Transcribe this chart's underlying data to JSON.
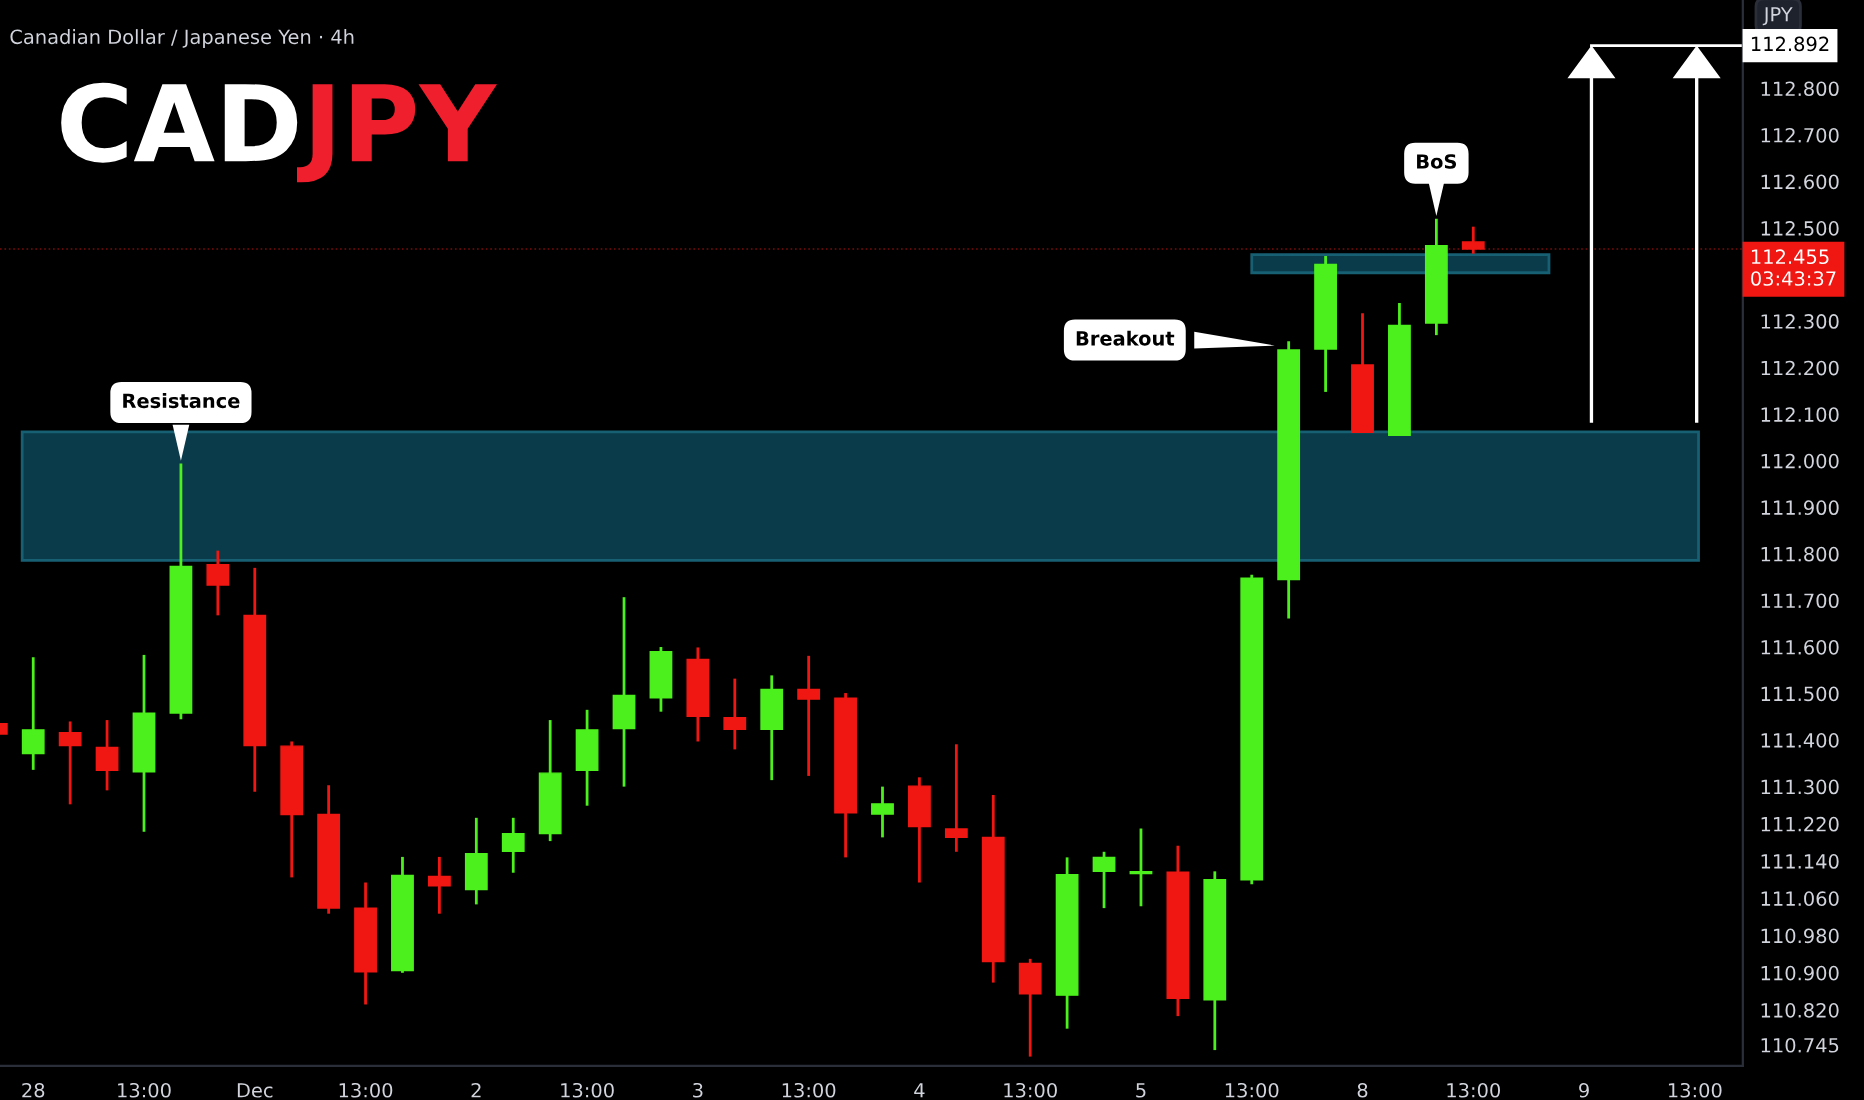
{
  "chart_data": {
    "type": "candlestick",
    "title": "Canadian Dollar / Japanese Yen · 4h",
    "subtitle": "CADJPY",
    "ylabel": "JPY",
    "categories": [
      null,
      "28",
      null,
      null,
      "13:00",
      null,
      null,
      "Dec",
      null,
      null,
      "13:00",
      null,
      null,
      "2",
      null,
      null,
      "13:00",
      null,
      null,
      "3",
      null,
      null,
      "13:00",
      null,
      null,
      "4",
      null,
      null,
      "13:00",
      null,
      null,
      "5",
      null,
      null,
      "13:00",
      null,
      null,
      "8",
      null,
      null,
      "13:00",
      null,
      null,
      "9",
      null,
      null,
      "13:00",
      null
    ],
    "ohlc": [
      [
        111.435,
        111.44,
        111.41,
        111.413
      ],
      [
        111.371,
        111.578,
        111.336,
        111.422
      ],
      [
        111.416,
        111.44,
        111.262,
        111.388
      ],
      [
        111.384,
        111.443,
        111.292,
        111.335
      ],
      [
        111.332,
        111.583,
        111.203,
        111.458
      ],
      [
        111.458,
        111.994,
        111.445,
        111.773
      ],
      [
        111.777,
        111.807,
        111.668,
        111.733
      ],
      [
        111.668,
        111.77,
        111.289,
        111.388
      ],
      [
        111.387,
        111.397,
        111.105,
        111.24
      ],
      [
        111.24,
        111.303,
        111.027,
        111.039
      ],
      [
        111.039,
        111.094,
        110.832,
        110.902
      ],
      [
        110.905,
        111.149,
        110.9,
        111.109
      ],
      [
        111.107,
        111.149,
        111.027,
        111.087
      ],
      [
        111.079,
        111.233,
        111.047,
        111.156
      ],
      [
        111.161,
        111.233,
        111.115,
        111.199
      ],
      [
        111.199,
        111.443,
        111.183,
        111.329
      ],
      [
        111.335,
        111.465,
        111.259,
        111.422
      ],
      [
        111.425,
        111.707,
        111.3,
        111.496
      ],
      [
        111.491,
        111.6,
        111.461,
        111.59
      ],
      [
        111.573,
        111.599,
        111.397,
        111.451
      ],
      [
        111.448,
        111.532,
        111.38,
        111.423
      ],
      [
        111.423,
        111.539,
        111.314,
        111.509
      ],
      [
        111.509,
        111.581,
        111.323,
        111.488
      ],
      [
        111.49,
        111.501,
        111.148,
        111.244
      ],
      [
        111.241,
        111.3,
        111.191,
        111.263
      ],
      [
        111.301,
        111.32,
        111.094,
        111.214
      ],
      [
        111.209,
        111.391,
        111.16,
        111.191
      ],
      [
        111.191,
        111.282,
        110.879,
        110.924
      ],
      [
        110.92,
        110.93,
        110.72,
        110.855
      ],
      [
        110.852,
        111.148,
        110.78,
        111.111
      ],
      [
        111.118,
        111.16,
        111.039,
        111.148
      ],
      [
        111.113,
        111.21,
        111.043,
        111.116
      ],
      [
        111.116,
        111.173,
        110.807,
        110.845
      ],
      [
        110.842,
        111.118,
        110.734,
        111.1
      ],
      [
        111.1,
        111.755,
        111.09,
        111.748
      ],
      [
        111.745,
        112.257,
        111.661,
        112.238
      ],
      [
        112.24,
        112.44,
        112.148,
        112.422
      ],
      [
        112.206,
        112.317,
        112.061,
        112.061
      ],
      [
        112.055,
        112.339,
        112.055,
        112.291
      ],
      [
        112.296,
        112.52,
        112.27,
        112.462
      ],
      [
        112.47,
        112.503,
        112.445,
        112.455
      ],
      null,
      null,
      null,
      null,
      null,
      null,
      null
    ],
    "colors": [
      "#f01712",
      "#4cf01c",
      "#f01712",
      "#f01712",
      "#4cf01c",
      "#4cf01c",
      "#f01712",
      "#f01712",
      "#f01712",
      "#f01712",
      "#f01712",
      "#4cf01c",
      "#f01712",
      "#4cf01c",
      "#4cf01c",
      "#4cf01c",
      "#4cf01c",
      "#4cf01c",
      "#4cf01c",
      "#f01712",
      "#f01712",
      "#4cf01c",
      "#f01712",
      "#f01712",
      "#4cf01c",
      "#f01712",
      "#f01712",
      "#f01712",
      "#f01712",
      "#4cf01c",
      "#4cf01c",
      "#4cf01c",
      "#f01712",
      "#4cf01c",
      "#4cf01c",
      "#4cf01c",
      "#4cf01c",
      "#f01712",
      "#4cf01c",
      "#4cf01c",
      "#f01712",
      null,
      null,
      null,
      null,
      null,
      null,
      null
    ],
    "ylim": [
      110.7,
      112.99
    ],
    "yticks": [
      {
        "value": 112.8,
        "label": "112.800"
      },
      {
        "value": 112.7,
        "label": "112.700"
      },
      {
        "value": 112.6,
        "label": "112.600"
      },
      {
        "value": 112.5,
        "label": "112.500"
      },
      {
        "value": 112.3,
        "label": "112.300"
      },
      {
        "value": 112.2,
        "label": "112.200"
      },
      {
        "value": 112.1,
        "label": "112.100"
      },
      {
        "value": 112.0,
        "label": "112.000"
      },
      {
        "value": 111.9,
        "label": "111.900"
      },
      {
        "value": 111.8,
        "label": "111.800"
      },
      {
        "value": 111.7,
        "label": "111.700"
      },
      {
        "value": 111.6,
        "label": "111.600"
      },
      {
        "value": 111.5,
        "label": "111.500"
      },
      {
        "value": 111.4,
        "label": "111.400"
      },
      {
        "value": 111.3,
        "label": "111.300"
      },
      {
        "value": 111.22,
        "label": "111.220"
      },
      {
        "value": 111.14,
        "label": "111.140"
      },
      {
        "value": 111.06,
        "label": "111.060"
      },
      {
        "value": 110.98,
        "label": "110.980"
      },
      {
        "value": 110.9,
        "label": "110.900"
      },
      {
        "value": 110.82,
        "label": "110.820"
      },
      {
        "value": 110.745,
        "label": "110.745"
      }
    ],
    "bands": [
      {
        "axis": "y",
        "from": 111.786,
        "to": 112.062,
        "color": "#0e4f63"
      },
      {
        "axis": "y",
        "from": 112.404,
        "to": 112.443,
        "color": "#0e4f63"
      }
    ],
    "ref_lines": [
      {
        "axis": "y",
        "value": 112.892,
        "label": "112.892",
        "color": "#ffffff"
      },
      {
        "axis": "y",
        "value": 112.455,
        "label": "112.455\n03:43:37",
        "color": "#f01712",
        "line_style": "dotted"
      }
    ],
    "annotations": [
      "Resistance",
      "Breakout",
      "BoS"
    ],
    "grid": false
  }
}
